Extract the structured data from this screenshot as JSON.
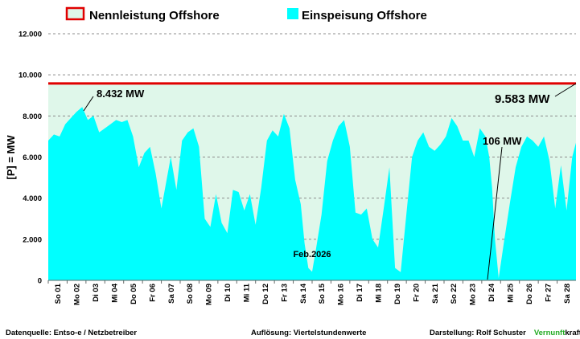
{
  "chart_data": {
    "type": "area",
    "title": "",
    "xlabel": "Feb.2026",
    "ylabel": "[P] = MW",
    "ylim": [
      0,
      12000
    ],
    "yticks": [
      0,
      2000,
      4000,
      6000,
      8000,
      10000,
      12000
    ],
    "ytick_labels": [
      "0",
      "2.000",
      "4.000",
      "6.000",
      "8.000",
      "10.000",
      "12.000"
    ],
    "x_labels": [
      "So 01",
      "Mo 02",
      "Di 03",
      "Mi 04",
      "Do 05",
      "Fr 06",
      "Sa 07",
      "So 08",
      "Mo 09",
      "Di 10",
      "Mi 11",
      "Do 12",
      "Fr 13",
      "Sa 14",
      "So 15",
      "Mo 16",
      "Di 17",
      "Mi 18",
      "Do 19",
      "Fr 20",
      "Sa 21",
      "So 22",
      "Mo 23",
      "Di 24",
      "Mi 25",
      "Do 26",
      "Fr 27",
      "Sa 28"
    ],
    "legend": [
      {
        "name": "Nennleistung Offshore",
        "style": "line",
        "color": "#e00000",
        "fill": "#dff7ea"
      },
      {
        "name": "Einspeisung Offshore",
        "style": "area",
        "color": "#00ffff"
      }
    ],
    "series": [
      {
        "name": "Nennleistung Offshore",
        "kind": "line",
        "value": 9583,
        "color": "#e00000"
      },
      {
        "name": "Einspeisung Offshore",
        "kind": "area",
        "color": "#00ffff",
        "x_days": [
          0,
          0.3,
          0.6,
          0.9,
          1.2,
          1.5,
          1.8,
          2.1,
          2.4,
          2.7,
          3.0,
          3.3,
          3.6,
          3.9,
          4.2,
          4.5,
          4.8,
          5.1,
          5.4,
          5.7,
          6.0,
          6.3,
          6.5,
          6.8,
          7.1,
          7.4,
          7.7,
          8.0,
          8.3,
          8.6,
          8.9,
          9.2,
          9.5,
          9.8,
          10.1,
          10.4,
          10.7,
          11.0,
          11.3,
          11.6,
          11.9,
          12.2,
          12.5,
          12.8,
          13.1,
          13.4,
          13.6,
          13.8,
          14.0,
          14.2,
          14.5,
          14.8,
          15.1,
          15.4,
          15.7,
          16.0,
          16.3,
          16.6,
          16.9,
          17.2,
          17.5,
          17.8,
          18.1,
          18.4,
          18.7,
          19.0,
          19.3,
          19.6,
          19.9,
          20.2,
          20.5,
          20.8,
          21.1,
          21.4,
          21.7,
          22.0,
          22.3,
          22.6,
          22.9,
          23.2,
          23.4,
          23.55,
          23.7,
          23.9,
          24.2,
          24.5,
          24.8,
          25.1,
          25.4,
          25.7,
          26.0,
          26.3,
          26.6,
          26.9,
          27.2,
          27.5,
          27.8,
          28.0
        ],
        "values": [
          6800,
          7100,
          7000,
          7600,
          7900,
          8200,
          8432,
          7800,
          8000,
          7200,
          7400,
          7600,
          7800,
          7700,
          7800,
          7000,
          5500,
          6200,
          6500,
          5200,
          3500,
          5000,
          6000,
          4400,
          6800,
          7200,
          7400,
          6500,
          3000,
          2600,
          4200,
          2800,
          2300,
          4400,
          4300,
          3400,
          4200,
          2700,
          4500,
          6800,
          7300,
          7000,
          8100,
          7400,
          4900,
          3700,
          1800,
          600,
          420,
          1500,
          3200,
          5800,
          6800,
          7500,
          7800,
          6500,
          3300,
          3200,
          3500,
          2000,
          1600,
          3500,
          5500,
          600,
          400,
          3200,
          6000,
          6800,
          7200,
          6500,
          6300,
          6600,
          7000,
          7900,
          7500,
          6800,
          6800,
          6000,
          7400,
          7000,
          6000,
          4500,
          2000,
          106,
          2000,
          3800,
          5500,
          6500,
          7000,
          6800,
          6500,
          7000,
          5800,
          3500,
          5600,
          3400,
          6000,
          6700
        ]
      }
    ],
    "annotations": [
      {
        "text": "8.432 MW",
        "x_day": 2.0,
        "value": 8432
      },
      {
        "text": "9.583 MW",
        "x_day": 28.0,
        "value": 9583
      },
      {
        "text": "106 MW",
        "x_day": 23.7,
        "value": 106
      }
    ]
  },
  "footer": {
    "source": "Datenquelle:  Entso-e  / Netzbetreiber",
    "resolution": "Auflösung: Viertelstundenwerte",
    "author": "Darstellung:  Rolf Schuster",
    "brand_a": "Vernunft",
    "brand_b": "kraft",
    "brand_a_color": "#22aa22"
  }
}
